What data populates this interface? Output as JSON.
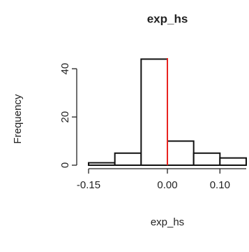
{
  "chart_data": {
    "type": "histogram",
    "title": "exp_hs",
    "xlabel": "exp_hs",
    "ylabel": "Frequency",
    "bins": [
      -0.15,
      -0.1,
      -0.05,
      0,
      0.05,
      0.1,
      0.15
    ],
    "counts": [
      1,
      5,
      44,
      10,
      5,
      3
    ],
    "color": "#ffffff",
    "edgecolor": "#111111",
    "xlim": [
      -0.15,
      0.15
    ],
    "ylim": [
      0,
      45
    ],
    "xticks": [
      {
        "value": -0.15,
        "label": "-0.15"
      },
      {
        "value": 0,
        "label": "0.00"
      },
      {
        "value": 0.1,
        "label": "0.10"
      }
    ],
    "yticks": [
      0,
      20,
      40
    ],
    "vline": {
      "x": 0,
      "color": "#e8231f"
    }
  }
}
